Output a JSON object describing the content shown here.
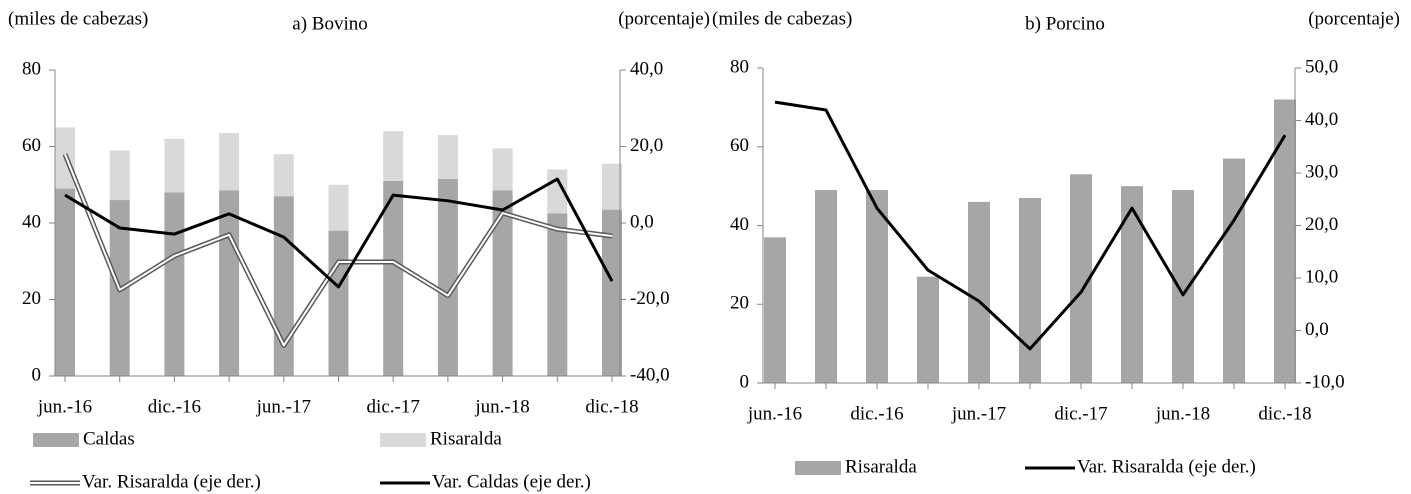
{
  "chart_data": [
    {
      "type": "combo",
      "title": "a) Bovino",
      "y_label": "(miles de cabezas)",
      "y2_label": "(porcentaje)",
      "categories": [
        "jun.-16",
        null,
        "dic.-16",
        null,
        "jun.-17",
        null,
        "dic.-17",
        null,
        "jun.-18",
        null,
        "dic.-18"
      ],
      "ylim": [
        0,
        80
      ],
      "yticks": [
        0,
        20,
        40,
        60,
        80
      ],
      "y2lim": [
        -40,
        40
      ],
      "y2ticks": [
        {
          "value": 40,
          "label": "40,0"
        },
        {
          "value": 20,
          "label": "20,0"
        },
        {
          "value": 0,
          "label": "0,0"
        },
        {
          "value": -20,
          "label": "-20,0"
        },
        {
          "value": -40,
          "label": "-40,0"
        }
      ],
      "stacked": true,
      "series": [
        {
          "name": "Caldas",
          "kind": "bar",
          "color": "#a6a6a6",
          "values": [
            49,
            46,
            48,
            48.5,
            47,
            38,
            51,
            51.5,
            48.5,
            42.5,
            43.5
          ]
        },
        {
          "name": "Risaralda",
          "kind": "bar",
          "color": "#d9d9d9",
          "values": [
            16,
            13,
            14,
            15,
            11,
            12,
            13,
            11.5,
            11,
            11.5,
            12
          ]
        },
        {
          "name": "Var. Risaralda (eje der.)",
          "kind": "line",
          "line_style": "double",
          "axis": "y2",
          "color": "#595959",
          "values": [
            18,
            -17.5,
            -8.6,
            -3.1,
            -32,
            -10.2,
            -10.2,
            -19,
            2.6,
            -1.6,
            -3.4
          ]
        },
        {
          "name": "Var. Caldas (eje der.)",
          "kind": "line",
          "axis": "y2",
          "color": "#000000",
          "values": [
            7.3,
            -1.3,
            -2.9,
            2.4,
            -3.7,
            -16.7,
            7.3,
            5.8,
            3.4,
            11.5,
            -15.2
          ]
        }
      ]
    },
    {
      "type": "combo",
      "title": "b) Porcino",
      "y_label": "(miles de cabezas)",
      "y2_label": "(porcentaje)",
      "categories": [
        "jun.-16",
        null,
        "dic.-16",
        null,
        "jun.-17",
        null,
        "dic.-17",
        null,
        "jun.-18",
        null,
        "dic.-18"
      ],
      "ylim": [
        0,
        80
      ],
      "yticks": [
        0,
        20,
        40,
        60,
        80
      ],
      "y2lim": [
        -10,
        50
      ],
      "y2ticks": [
        {
          "value": 50,
          "label": "50,0"
        },
        {
          "value": 40,
          "label": "40,0"
        },
        {
          "value": 30,
          "label": "30,0"
        },
        {
          "value": 20,
          "label": "20,0"
        },
        {
          "value": 10,
          "label": "10,0"
        },
        {
          "value": 0,
          "label": "0,0"
        },
        {
          "value": -10,
          "label": "-10,0"
        }
      ],
      "stacked": true,
      "series": [
        {
          "name": "Risaralda",
          "kind": "bar",
          "color": "#a6a6a6",
          "values": [
            37,
            49,
            49,
            27,
            46,
            47,
            53,
            50,
            49,
            57,
            72
          ]
        },
        {
          "name": "Var. Risaralda (eje der.)",
          "kind": "line",
          "axis": "y2",
          "color": "#000000",
          "values": [
            43.5,
            42,
            23.3,
            11.5,
            5.6,
            -3.5,
            7.3,
            23.3,
            6.8,
            21,
            37.2
          ]
        }
      ]
    }
  ]
}
